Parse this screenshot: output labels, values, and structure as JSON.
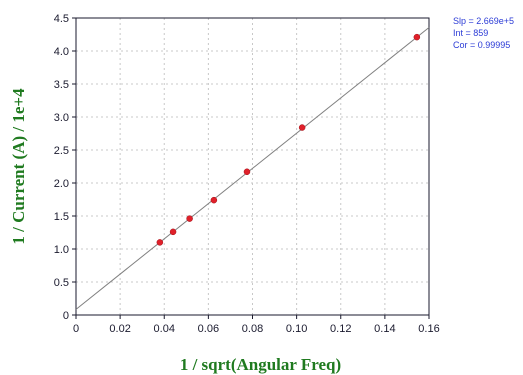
{
  "chart_data": {
    "type": "scatter",
    "xlabel": "1 / sqrt(Angular Freq)",
    "ylabel": "1 / Current (A) / 1e+4",
    "xlim": [
      0,
      0.16
    ],
    "ylim": [
      0,
      4.5
    ],
    "xticks": [
      "0",
      "0.02",
      "0.04",
      "0.06",
      "0.08",
      "0.10",
      "0.12",
      "0.14",
      "0.16"
    ],
    "yticks": [
      "0",
      "0.5",
      "1.0",
      "1.5",
      "2.0",
      "2.5",
      "3.0",
      "3.5",
      "4.0",
      "4.5"
    ],
    "grid": true,
    "series": [
      {
        "x": [
          0.038,
          0.044,
          0.0515,
          0.0625,
          0.0775,
          0.1025,
          0.1545
        ],
        "y": [
          1.1,
          1.26,
          1.46,
          1.74,
          2.17,
          2.84,
          4.21
        ],
        "marker": "circle"
      }
    ],
    "fit_line": {
      "slope": 26.69,
      "intercept": 0.0859
    },
    "stats": {
      "slope": "Slp = 2.669e+5",
      "intercept": "Int = 859",
      "correlation": "Cor = 0.99995"
    }
  },
  "colors": {
    "axis_title": "#1f7a1f",
    "stats": "#2b3bd6",
    "marker": "#e0202a",
    "fit_line": "#808080",
    "grid": "#c8c8c8",
    "axis": "#1a1a2e"
  }
}
